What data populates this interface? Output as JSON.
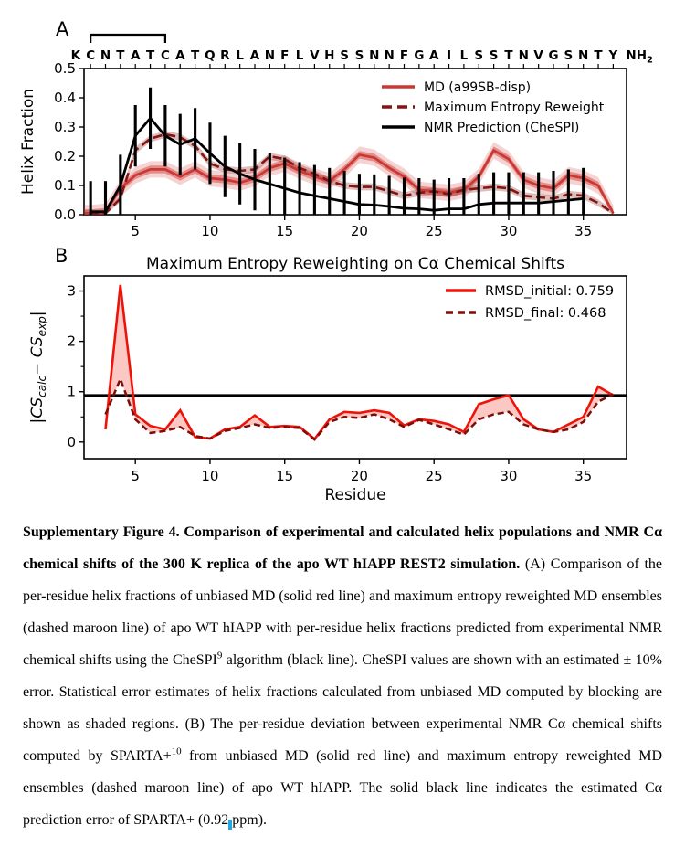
{
  "figure": {
    "panel_a_label": "A",
    "panel_b_label": "B"
  },
  "sequence": {
    "residues": [
      "K",
      "C",
      "N",
      "T",
      "A",
      "T",
      "C",
      "A",
      "T",
      "Q",
      "R",
      "L",
      "A",
      "N",
      "F",
      "L",
      "V",
      "H",
      "S",
      "S",
      "N",
      "N",
      "F",
      "G",
      "A",
      "I",
      "L",
      "S",
      "S",
      "T",
      "N",
      "V",
      "G",
      "S",
      "N",
      "T",
      "Y"
    ],
    "terminus_main": "NH",
    "terminus_sub": "2",
    "bracket_from": 2,
    "bracket_to": 7
  },
  "colors": {
    "md_red": "#cb3834",
    "maroon_dashed": "#841511",
    "black": "#000000",
    "b_red": "#ee1309",
    "b_maroon": "#7c0d08",
    "fill_pink": "#f4574a",
    "cursor_blue": "#27a7df"
  },
  "chart_data": [
    {
      "panel": "A",
      "type": "line",
      "ylabel": "Helix Fraction",
      "ylim": [
        0.0,
        0.5
      ],
      "yticks": [
        "0.0",
        "0.1",
        "0.2",
        "0.3",
        "0.4",
        "0.5"
      ],
      "xticks": [
        5,
        10,
        15,
        20,
        25,
        30,
        35
      ],
      "xlim": [
        1.6,
        38
      ],
      "legend_position": "upper right",
      "series": [
        {
          "name": "MD (a99SB-disp)",
          "color": "#cb3834",
          "style": "solid",
          "band": 0.013,
          "outer_band": 0.028,
          "x_start": 1,
          "values": [
            0.005,
            0.005,
            0.01,
            0.09,
            0.135,
            0.155,
            0.155,
            0.13,
            0.155,
            0.125,
            0.12,
            0.11,
            0.125,
            0.16,
            0.175,
            0.15,
            0.13,
            0.115,
            0.155,
            0.205,
            0.195,
            0.16,
            0.13,
            0.085,
            0.08,
            0.075,
            0.085,
            0.13,
            0.22,
            0.19,
            0.12,
            0.1,
            0.09,
            0.135,
            0.125,
            0.1,
            0.005
          ]
        },
        {
          "name": "Maximum Entropy Reweight",
          "color": "#841511",
          "style": "dashed",
          "band": 0.012,
          "x_start": 1,
          "values": [
            0.005,
            0.005,
            0.005,
            0.055,
            0.22,
            0.26,
            0.275,
            0.265,
            0.235,
            0.175,
            0.155,
            0.15,
            0.155,
            0.2,
            0.19,
            0.16,
            0.14,
            0.115,
            0.1,
            0.095,
            0.095,
            0.08,
            0.065,
            0.075,
            0.08,
            0.07,
            0.085,
            0.09,
            0.095,
            0.09,
            0.065,
            0.06,
            0.055,
            0.07,
            0.065,
            0.04,
            0.005
          ]
        },
        {
          "name": "NMR Prediction (CheSPI)",
          "color": "#000000",
          "style": "solid",
          "error": 0.105,
          "x_start": 2,
          "values": [
            0.01,
            0.01,
            0.1,
            0.27,
            0.33,
            0.27,
            0.24,
            0.26,
            0.21,
            0.165,
            0.14,
            0.12,
            0.105,
            0.09,
            0.075,
            0.065,
            0.055,
            0.045,
            0.035,
            0.033,
            0.028,
            0.022,
            0.02,
            0.015,
            0.02,
            0.02,
            0.035,
            0.04,
            0.04,
            0.04,
            0.04,
            0.045,
            0.05,
            0.055
          ]
        }
      ]
    },
    {
      "panel": "B",
      "type": "line",
      "title": "Maximum Entropy Reweighting on Cα Chemical Shifts",
      "ylabel_math": {
        "pre": "|CS",
        "sub1": "calc",
        "mid": "− CS",
        "sub2": "exp",
        "post": "|"
      },
      "xlabel": "Residue",
      "ylim": [
        -0.33,
        3.3
      ],
      "yticks": [
        0,
        1,
        2,
        3
      ],
      "yticks_minor": [
        0.5,
        1.5,
        2.5
      ],
      "xticks": [
        5,
        10,
        15,
        20,
        25,
        30,
        35
      ],
      "hline": 0.92,
      "fill_between": true,
      "legend_position": "upper right",
      "series": [
        {
          "name": "RMSD_initial: 0.759",
          "color": "#ee1309",
          "style": "solid",
          "x_start": 3,
          "values": [
            0.25,
            3.12,
            0.55,
            0.32,
            0.25,
            0.63,
            0.1,
            0.07,
            0.25,
            0.3,
            0.53,
            0.3,
            0.32,
            0.3,
            0.06,
            0.45,
            0.6,
            0.58,
            0.63,
            0.58,
            0.33,
            0.45,
            0.42,
            0.35,
            0.2,
            0.75,
            0.85,
            0.93,
            0.45,
            0.25,
            0.2,
            0.35,
            0.5,
            1.1,
            0.93
          ]
        },
        {
          "name": "RMSD_final: 0.468",
          "color": "#7c0d08",
          "style": "dashed",
          "x_start": 3,
          "values": [
            0.55,
            1.25,
            0.45,
            0.18,
            0.22,
            0.3,
            0.12,
            0.07,
            0.22,
            0.28,
            0.35,
            0.28,
            0.3,
            0.28,
            0.05,
            0.4,
            0.5,
            0.48,
            0.55,
            0.45,
            0.3,
            0.44,
            0.35,
            0.25,
            0.15,
            0.45,
            0.55,
            0.6,
            0.35,
            0.25,
            0.2,
            0.25,
            0.4,
            0.8,
            0.95
          ]
        }
      ]
    }
  ],
  "caption": {
    "segments": [
      {
        "text": "Supplementary Figure 4. Comparison of experimental and calculated helix populations and NMR Cα chemical shifts of the 300 K replica of the apo WT hIAPP REST2 simulation.",
        "bold": true
      },
      {
        "text": " (A) Comparison of the per-residue helix fractions of unbiased MD (solid red line) and maximum entropy reweighted MD ensembles (dashed maroon line) of apo WT hIAPP with per-residue helix fractions predicted from experimental NMR chemical shifts using the CheSPI"
      },
      {
        "text": "9",
        "sup": true
      },
      {
        "text": " algorithm (black line). CheSPI values are shown with an estimated ± 10% error. Statistical error estimates of helix fractions calculated from unbiased MD computed by blocking are shown as shaded regions. (B) The per-residue deviation between experimental NMR Cα chemical shifts computed by SPARTA+"
      },
      {
        "text": "10",
        "sup": true
      },
      {
        "text": " from unbiased MD (solid red line) and maximum entropy reweighted MD ensembles (dashed maroon line) of apo WT hIAPP. The solid black line indicates the estimated Cα prediction error of SPARTA+ (0.92 ppm)."
      }
    ]
  }
}
